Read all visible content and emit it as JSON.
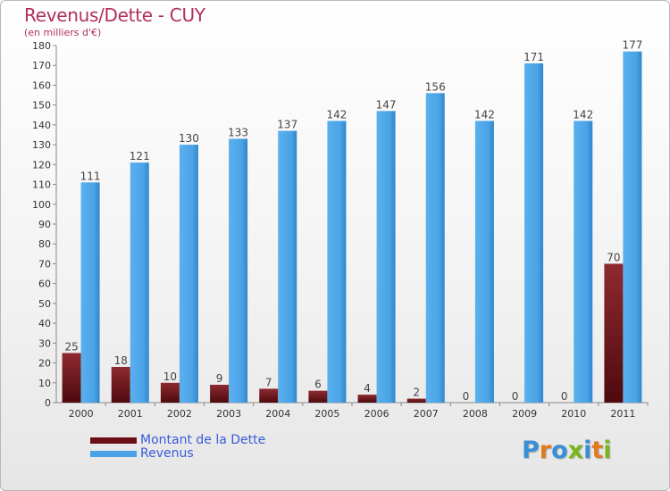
{
  "header": {
    "title": "Revenus/Dette - CUY",
    "subtitle": "(en milliers d'€)"
  },
  "colors": {
    "debt": "#7a1a1f",
    "debt_dark": "#4e0a0e",
    "revenue": "#4aa3e6",
    "revenue_dark": "#2a7fc6",
    "title": "#b0305a",
    "legend_text": "#3a5bd9"
  },
  "legend": {
    "items": [
      {
        "label": "Montant de la Dette",
        "color": "#6b0f14"
      },
      {
        "label": "Revenus",
        "color": "#4aa3e6"
      }
    ]
  },
  "logo": {
    "text": "Proxiti",
    "letter_colors": [
      "#3a8fd6",
      "#e07a1f",
      "#3a8fd6",
      "#7ab51d",
      "#3a8fd6",
      "#e07a1f",
      "#7ab51d"
    ]
  },
  "chart_data": {
    "type": "bar",
    "title": "Revenus/Dette - CUY",
    "subtitle": "(en milliers d'€)",
    "categories": [
      "2000",
      "2001",
      "2002",
      "2003",
      "2004",
      "2005",
      "2006",
      "2007",
      "2008",
      "2009",
      "2010",
      "2011"
    ],
    "series": [
      {
        "name": "Montant de la Dette",
        "values": [
          25,
          18,
          10,
          9,
          7,
          6,
          4,
          2,
          0,
          0,
          0,
          70
        ]
      },
      {
        "name": "Revenus",
        "values": [
          111,
          121,
          130,
          133,
          137,
          142,
          147,
          156,
          142,
          171,
          142,
          177
        ]
      }
    ],
    "ylim": [
      0,
      180
    ],
    "yticks": [
      0,
      10,
      20,
      30,
      40,
      50,
      60,
      70,
      80,
      90,
      100,
      110,
      120,
      130,
      140,
      150,
      160,
      170,
      180
    ],
    "grid": false,
    "legend_position": "bottom-left"
  }
}
